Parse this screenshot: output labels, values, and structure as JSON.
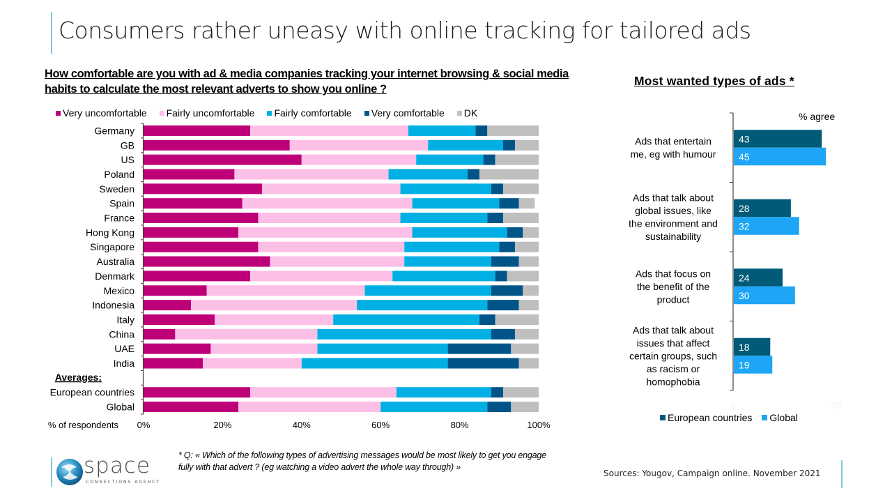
{
  "page": {
    "title": "Consumers rather uneasy with online tracking for tailored ads",
    "footnote": "* Q: « Which of the following types of advertising messages would be most likely to get you engage fully with that advert ? (eg watching a video advert the whole way through) »",
    "sources": "Sources:  Yougov, Campaign online. November 2021",
    "logo": {
      "word": "space",
      "tagline": "CONNECTIONS AGENCY",
      "icon": "swirl-globe-icon"
    }
  },
  "chart_data": [
    {
      "type": "bar",
      "orientation": "horizontal-stacked-100",
      "title": "How comfortable are you with ad & media companies tracking your internet browsing & social media habits to calculate the most relevant adverts to show you online ?",
      "xlabel": "% of respondents",
      "xlim": [
        0,
        100
      ],
      "x_ticks": [
        "0%",
        "20%",
        "40%",
        "60%",
        "80%",
        "100%"
      ],
      "group_label": "Averages:",
      "legend_position": "top",
      "categories": [
        "Germany",
        "GB",
        "US",
        "Poland",
        "Sweden",
        "Spain",
        "France",
        "Hong Kong",
        "Singapore",
        "Australia",
        "Denmark",
        "Mexico",
        "Indonesia",
        "Italy",
        "China",
        "UAE",
        "India",
        "",
        "European countries",
        "Global"
      ],
      "series": [
        {
          "name": "Very uncomfortable",
          "color": "#be0078",
          "values": [
            27,
            37,
            40,
            23,
            30,
            25,
            29,
            24,
            29,
            32,
            27,
            16,
            12,
            18,
            8,
            17,
            15,
            null,
            27,
            24
          ]
        },
        {
          "name": "Fairly uncomfortable",
          "color": "#fcbfe6",
          "values": [
            40,
            35,
            29,
            39,
            35,
            43,
            36,
            44,
            37,
            34,
            36,
            40,
            42,
            30,
            36,
            27,
            25,
            null,
            37,
            36
          ]
        },
        {
          "name": "Fairly comfortable",
          "color": "#00b0e4",
          "values": [
            17,
            19,
            17,
            20,
            23,
            22,
            22,
            24,
            24,
            22,
            26,
            32,
            33,
            37,
            44,
            33,
            37,
            null,
            24,
            27
          ]
        },
        {
          "name": "Very comfortable",
          "color": "#005487",
          "values": [
            3,
            3,
            3,
            3,
            3,
            5,
            4,
            4,
            4,
            7,
            3,
            8,
            8,
            4,
            6,
            16,
            18,
            null,
            3,
            6
          ]
        },
        {
          "name": "DK",
          "color": "#bfbfbf",
          "values": [
            13,
            6,
            11,
            15,
            9,
            4,
            9,
            4,
            6,
            5,
            8,
            4,
            5,
            11,
            6,
            7,
            5,
            null,
            9,
            7
          ]
        }
      ]
    },
    {
      "type": "bar",
      "orientation": "horizontal-grouped",
      "title": "Most wanted types of ads *",
      "unit_label": "% agree",
      "xlim": [
        0,
        50
      ],
      "x_ticks": [
        "0",
        "50"
      ],
      "legend_position": "bottom",
      "categories": [
        "Ads that entertain me, eg with humour",
        "Ads that talk about global issues, like the environment and sustainability",
        "Ads that focus on the benefit of the product",
        "Ads that talk about issues that affect certain groups, such as racism or homophobia"
      ],
      "category_lines": [
        [
          "Ads that entertain",
          "me, eg with humour"
        ],
        [
          "Ads that talk about",
          "global issues, like",
          "the environment and",
          "sustainability"
        ],
        [
          "Ads that focus on",
          "the benefit of the",
          "product"
        ],
        [
          "Ads that talk about",
          "issues that affect",
          "certain groups, such",
          "as racism or",
          "homophobia"
        ]
      ],
      "series": [
        {
          "name": "European countries",
          "color": "#005a78",
          "values": [
            43,
            28,
            24,
            18
          ]
        },
        {
          "name": "Global",
          "color": "#1ea5f5",
          "values": [
            45,
            32,
            30,
            19
          ]
        }
      ]
    }
  ]
}
